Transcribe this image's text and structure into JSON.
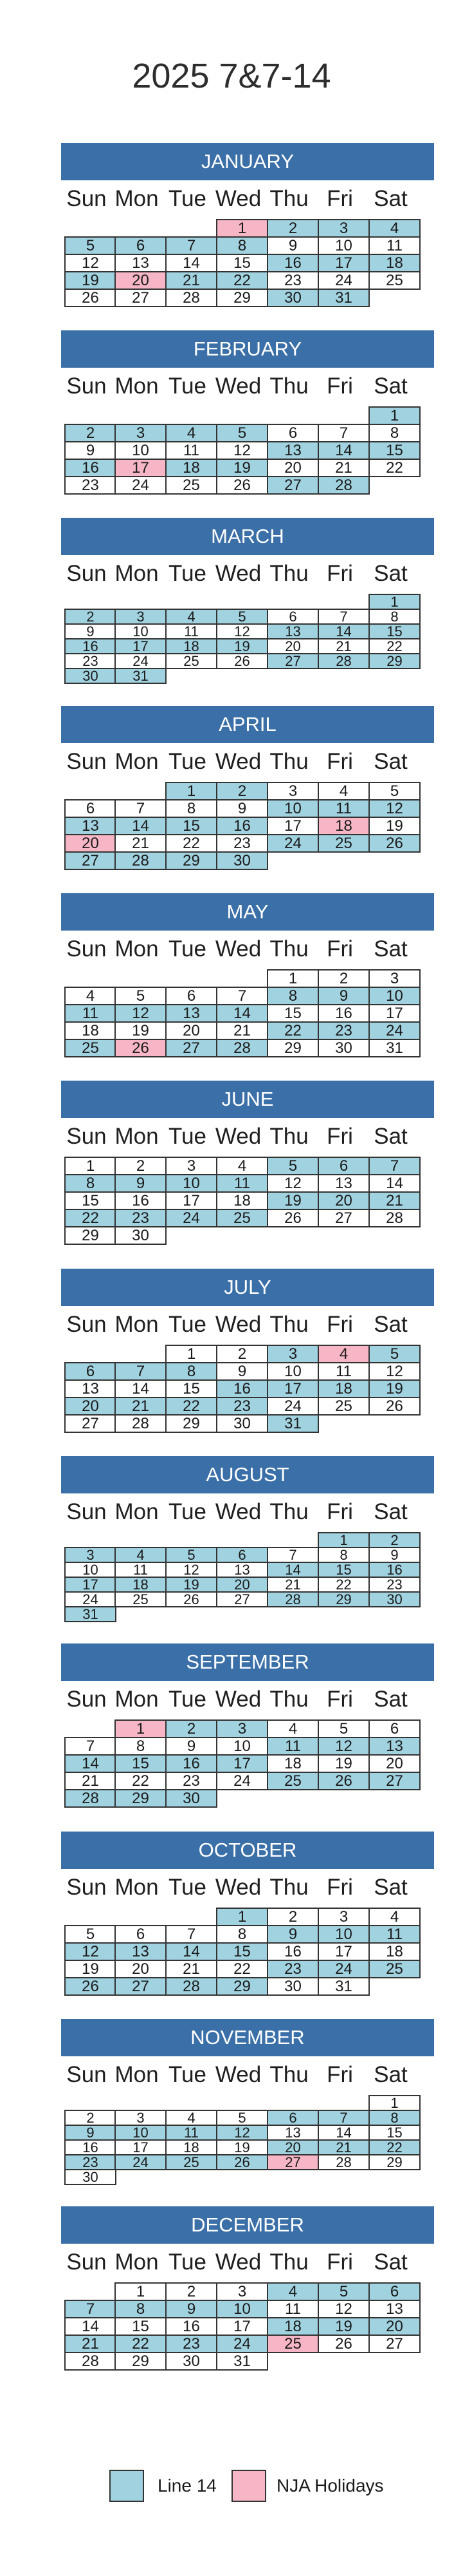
{
  "title": "2025 7&7-14",
  "weekdays": [
    "Sun",
    "Mon",
    "Tue",
    "Wed",
    "Thu",
    "Fri",
    "Sat"
  ],
  "legend": {
    "line_label": "Line 14",
    "line_color": "#a1d2e0",
    "holiday_label": "NJA Holidays",
    "holiday_color": "#f6b6c6"
  },
  "months": [
    {
      "name": "JANUARY",
      "start": 3,
      "days": 31,
      "line": [
        2,
        3,
        4,
        5,
        6,
        7,
        8,
        16,
        17,
        18,
        19,
        21,
        22,
        30,
        31
      ],
      "holidays": [
        1,
        20
      ]
    },
    {
      "name": "FEBRUARY",
      "start": 6,
      "days": 28,
      "line": [
        1,
        2,
        3,
        4,
        5,
        13,
        14,
        15,
        16,
        18,
        19,
        27,
        28
      ],
      "holidays": [
        17
      ]
    },
    {
      "name": "MARCH",
      "start": 6,
      "days": 31,
      "line": [
        1,
        2,
        3,
        4,
        5,
        13,
        14,
        15,
        16,
        17,
        18,
        19,
        27,
        28,
        29,
        30,
        31
      ],
      "holidays": []
    },
    {
      "name": "APRIL",
      "start": 2,
      "days": 30,
      "line": [
        1,
        2,
        10,
        11,
        12,
        13,
        14,
        15,
        16,
        24,
        25,
        26,
        27,
        28,
        29,
        30
      ],
      "holidays": [
        18,
        20
      ]
    },
    {
      "name": "MAY",
      "start": 4,
      "days": 31,
      "line": [
        8,
        9,
        10,
        11,
        12,
        13,
        14,
        22,
        23,
        24,
        25,
        27,
        28
      ],
      "holidays": [
        26
      ]
    },
    {
      "name": "JUNE",
      "start": 0,
      "days": 30,
      "line": [
        5,
        6,
        7,
        8,
        9,
        10,
        11,
        19,
        20,
        21,
        22,
        23,
        24,
        25
      ],
      "holidays": []
    },
    {
      "name": "JULY",
      "start": 2,
      "days": 31,
      "line": [
        3,
        5,
        6,
        7,
        8,
        16,
        17,
        18,
        19,
        20,
        21,
        22,
        23,
        31
      ],
      "holidays": [
        4
      ]
    },
    {
      "name": "AUGUST",
      "start": 5,
      "days": 31,
      "line": [
        1,
        2,
        3,
        4,
        5,
        6,
        14,
        15,
        16,
        17,
        18,
        19,
        20,
        28,
        29,
        30,
        31
      ],
      "holidays": []
    },
    {
      "name": "SEPTEMBER",
      "start": 1,
      "days": 30,
      "line": [
        2,
        3,
        11,
        12,
        13,
        14,
        15,
        16,
        17,
        25,
        26,
        27,
        28,
        29,
        30
      ],
      "holidays": [
        1
      ]
    },
    {
      "name": "OCTOBER",
      "start": 3,
      "days": 31,
      "line": [
        1,
        9,
        10,
        11,
        12,
        13,
        14,
        15,
        23,
        24,
        25,
        26,
        27,
        28,
        29
      ],
      "holidays": []
    },
    {
      "name": "NOVEMBER",
      "start": 6,
      "days": 30,
      "line": [
        6,
        7,
        8,
        9,
        10,
        11,
        12,
        20,
        21,
        22,
        23,
        24,
        25,
        26
      ],
      "holidays": [
        27
      ]
    },
    {
      "name": "DECEMBER",
      "start": 1,
      "days": 31,
      "line": [
        4,
        5,
        6,
        7,
        8,
        9,
        10,
        18,
        19,
        20,
        21,
        22,
        23,
        24
      ],
      "holidays": [
        25
      ]
    }
  ]
}
